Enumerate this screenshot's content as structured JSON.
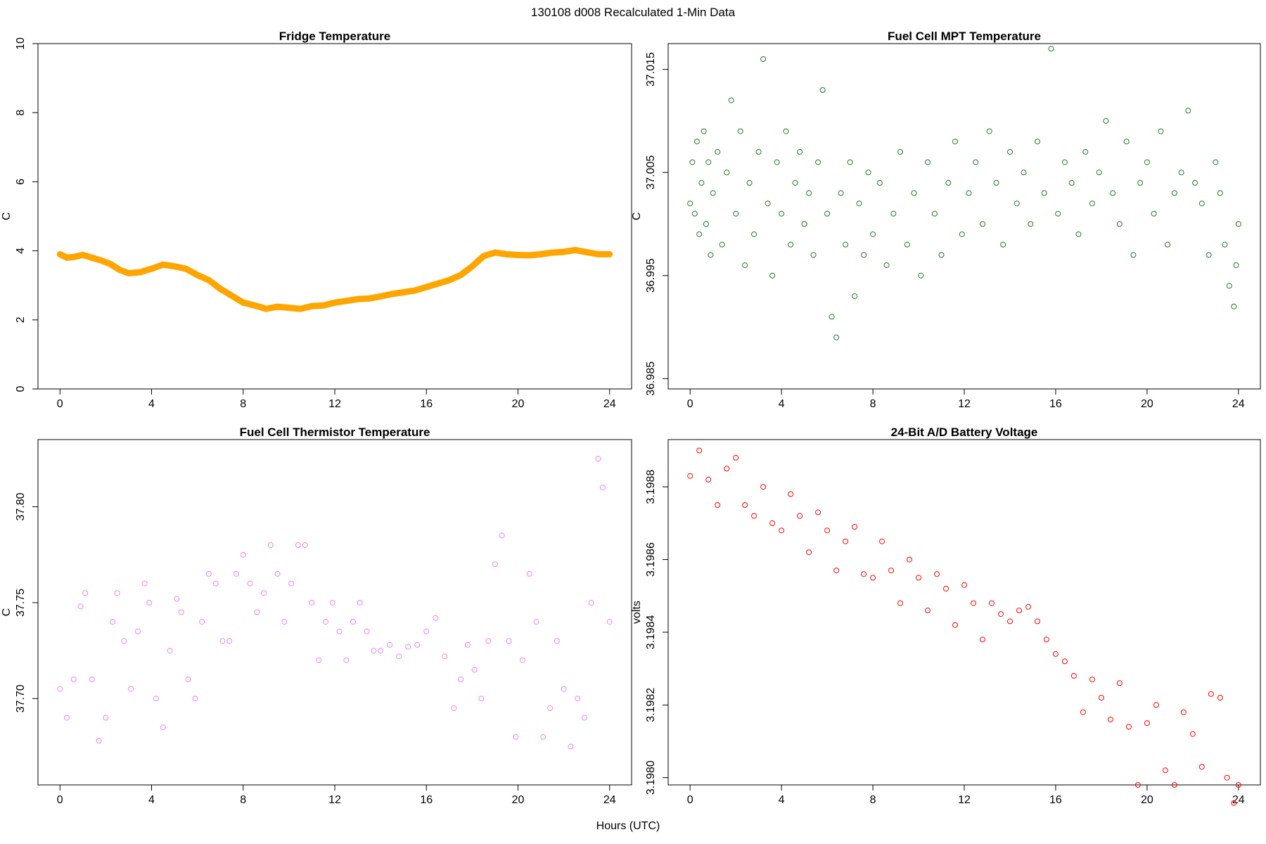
{
  "figure_title": "130108   d008   Recalculated 1-Min Data",
  "shared_xlabel": "Hours (UTC)",
  "chart_data": [
    {
      "type": "line",
      "title": "Fridge Temperature",
      "xlabel": "",
      "ylabel": "C",
      "xlim": [
        0,
        24
      ],
      "ylim": [
        0,
        10
      ],
      "xticks": [
        0,
        4,
        8,
        12,
        16,
        20,
        24
      ],
      "yticks": [
        0,
        2,
        4,
        6,
        8,
        10
      ],
      "color": "#FFA500",
      "series": [
        {
          "name": "Fridge Temperature",
          "x": [
            0.0,
            0.3,
            0.6,
            1.0,
            1.4,
            1.8,
            2.2,
            2.6,
            3.0,
            3.5,
            4.0,
            4.5,
            5.0,
            5.5,
            6.0,
            6.5,
            7.0,
            7.5,
            8.0,
            8.5,
            9.0,
            9.5,
            10.0,
            10.5,
            11.0,
            11.5,
            12.0,
            12.5,
            13.0,
            13.5,
            14.0,
            14.5,
            15.0,
            15.5,
            16.0,
            16.5,
            17.0,
            17.5,
            18.0,
            18.5,
            19.0,
            19.5,
            20.0,
            20.5,
            21.0,
            21.5,
            22.0,
            22.5,
            23.0,
            23.5,
            24.0
          ],
          "y": [
            3.9,
            3.8,
            3.82,
            3.88,
            3.8,
            3.72,
            3.62,
            3.45,
            3.35,
            3.38,
            3.48,
            3.6,
            3.55,
            3.48,
            3.3,
            3.15,
            2.9,
            2.7,
            2.5,
            2.42,
            2.32,
            2.38,
            2.35,
            2.32,
            2.4,
            2.42,
            2.5,
            2.55,
            2.6,
            2.62,
            2.68,
            2.75,
            2.8,
            2.85,
            2.95,
            3.05,
            3.15,
            3.3,
            3.55,
            3.85,
            3.95,
            3.9,
            3.88,
            3.87,
            3.9,
            3.95,
            3.97,
            4.02,
            3.96,
            3.9,
            3.9
          ]
        }
      ]
    },
    {
      "type": "scatter",
      "title": "Fuel Cell MPT Temperature",
      "xlabel": "",
      "ylabel": "C",
      "xlim": [
        0,
        24
      ],
      "ylim": [
        36.984,
        37.0175
      ],
      "xticks": [
        0,
        4,
        8,
        12,
        16,
        20,
        24
      ],
      "yticks": [
        36.985,
        36.995,
        37.005,
        37.015
      ],
      "yticklabels": [
        "36.985",
        "36.995",
        "37.005",
        "37.015"
      ],
      "color": "#1E7B1E",
      "series": [
        {
          "name": "Fuel Cell MPT Temperature",
          "x": [
            0.0,
            0.1,
            0.2,
            0.3,
            0.4,
            0.5,
            0.6,
            0.7,
            0.8,
            0.9,
            1.0,
            1.2,
            1.4,
            1.6,
            1.8,
            2.0,
            2.2,
            2.4,
            2.6,
            2.8,
            3.0,
            3.2,
            3.4,
            3.6,
            3.8,
            4.0,
            4.2,
            4.4,
            4.6,
            4.8,
            5.0,
            5.2,
            5.4,
            5.6,
            5.8,
            6.0,
            6.2,
            6.4,
            6.6,
            6.8,
            7.0,
            7.2,
            7.4,
            7.6,
            7.8,
            8.0,
            8.3,
            8.6,
            8.9,
            9.2,
            9.5,
            9.8,
            10.1,
            10.4,
            10.7,
            11.0,
            11.3,
            11.6,
            11.9,
            12.2,
            12.5,
            12.8,
            13.1,
            13.4,
            13.7,
            14.0,
            14.3,
            14.6,
            14.9,
            15.2,
            15.5,
            15.8,
            16.1,
            16.4,
            16.7,
            17.0,
            17.3,
            17.6,
            17.9,
            18.2,
            18.5,
            18.8,
            19.1,
            19.4,
            19.7,
            20.0,
            20.3,
            20.6,
            20.9,
            21.2,
            21.5,
            21.8,
            22.1,
            22.4,
            22.7,
            23.0,
            23.2,
            23.4,
            23.6,
            23.8,
            23.9,
            24.0
          ],
          "y": [
            37.002,
            37.006,
            37.001,
            37.008,
            36.999,
            37.004,
            37.009,
            37.0,
            37.006,
            36.997,
            37.003,
            37.007,
            36.998,
            37.005,
            37.012,
            37.001,
            37.009,
            36.996,
            37.004,
            36.999,
            37.007,
            37.016,
            37.002,
            36.995,
            37.006,
            37.001,
            37.009,
            36.998,
            37.004,
            37.007,
            37.0,
            37.003,
            36.997,
            37.006,
            37.013,
            37.001,
            36.991,
            36.989,
            37.003,
            36.998,
            37.006,
            36.993,
            37.002,
            36.997,
            37.005,
            36.999,
            37.004,
            36.996,
            37.001,
            37.007,
            36.998,
            37.003,
            36.995,
            37.006,
            37.001,
            36.997,
            37.004,
            37.008,
            36.999,
            37.003,
            37.006,
            37.0,
            37.009,
            37.004,
            36.998,
            37.007,
            37.002,
            37.005,
            37.0,
            37.008,
            37.003,
            37.017,
            37.001,
            37.006,
            37.004,
            36.999,
            37.007,
            37.002,
            37.005,
            37.01,
            37.003,
            37.0,
            37.008,
            36.997,
            37.004,
            37.006,
            37.001,
            37.009,
            36.998,
            37.003,
            37.005,
            37.011,
            37.004,
            37.002,
            36.997,
            37.006,
            37.003,
            36.998,
            36.994,
            36.992,
            36.996,
            37.0
          ]
        }
      ]
    },
    {
      "type": "scatter",
      "title": "Fuel Cell Thermistor Temperature",
      "xlabel": "",
      "ylabel": "C",
      "xlim": [
        0,
        24
      ],
      "ylim": [
        37.655,
        37.835
      ],
      "xticks": [
        0,
        4,
        8,
        12,
        16,
        20,
        24
      ],
      "yticks": [
        37.7,
        37.75,
        37.8
      ],
      "yticklabels": [
        "37.70",
        "37.75",
        "37.80"
      ],
      "color": "#EE82EE",
      "series": [
        {
          "name": "Fuel Cell Thermistor Temperature",
          "x": [
            0.0,
            0.3,
            0.6,
            0.9,
            1.1,
            1.4,
            1.7,
            2.0,
            2.3,
            2.5,
            2.8,
            3.1,
            3.4,
            3.7,
            3.9,
            4.2,
            4.5,
            4.8,
            5.1,
            5.3,
            5.6,
            5.9,
            6.2,
            6.5,
            6.8,
            7.1,
            7.4,
            7.7,
            8.0,
            8.3,
            8.6,
            8.9,
            9.2,
            9.5,
            9.8,
            10.1,
            10.4,
            10.7,
            11.0,
            11.3,
            11.6,
            11.9,
            12.2,
            12.5,
            12.8,
            13.1,
            13.4,
            13.7,
            14.0,
            14.4,
            14.8,
            15.2,
            15.6,
            16.0,
            16.4,
            16.8,
            17.2,
            17.5,
            17.8,
            18.1,
            18.4,
            18.7,
            19.0,
            19.3,
            19.6,
            19.9,
            20.2,
            20.5,
            20.8,
            21.1,
            21.4,
            21.7,
            22.0,
            22.3,
            22.6,
            22.9,
            23.2,
            23.5,
            23.7,
            24.0
          ],
          "y": [
            37.705,
            37.69,
            37.71,
            37.748,
            37.755,
            37.71,
            37.678,
            37.69,
            37.74,
            37.755,
            37.73,
            37.705,
            37.735,
            37.76,
            37.75,
            37.7,
            37.685,
            37.725,
            37.752,
            37.745,
            37.71,
            37.7,
            37.74,
            37.765,
            37.76,
            37.73,
            37.73,
            37.765,
            37.775,
            37.76,
            37.745,
            37.755,
            37.78,
            37.765,
            37.74,
            37.76,
            37.78,
            37.78,
            37.75,
            37.72,
            37.74,
            37.75,
            37.735,
            37.72,
            37.74,
            37.75,
            37.735,
            37.725,
            37.725,
            37.728,
            37.722,
            37.727,
            37.728,
            37.735,
            37.742,
            37.722,
            37.695,
            37.71,
            37.728,
            37.715,
            37.7,
            37.73,
            37.77,
            37.785,
            37.73,
            37.68,
            37.72,
            37.765,
            37.74,
            37.68,
            37.695,
            37.73,
            37.705,
            37.675,
            37.7,
            37.69,
            37.75,
            37.825,
            37.81,
            37.74
          ]
        }
      ]
    },
    {
      "type": "scatter",
      "title": "24-Bit A/D Battery Voltage",
      "xlabel": "",
      "ylabel": "volts",
      "xlim": [
        0,
        24
      ],
      "ylim": [
        3.19798,
        3.19893
      ],
      "xticks": [
        0,
        4,
        8,
        12,
        16,
        20,
        24
      ],
      "yticks": [
        3.198,
        3.1982,
        3.1984,
        3.1986,
        3.1988
      ],
      "yticklabels": [
        "3.1980",
        "3.1982",
        "3.1984",
        "3.1986",
        "3.1988"
      ],
      "color": "#FF0000",
      "series": [
        {
          "name": "24-Bit A/D Battery Voltage",
          "x": [
            0.0,
            0.4,
            0.8,
            1.2,
            1.6,
            2.0,
            2.4,
            2.8,
            3.2,
            3.6,
            4.0,
            4.4,
            4.8,
            5.2,
            5.6,
            6.0,
            6.4,
            6.8,
            7.2,
            7.6,
            8.0,
            8.4,
            8.8,
            9.2,
            9.6,
            10.0,
            10.4,
            10.8,
            11.2,
            11.6,
            12.0,
            12.4,
            12.8,
            13.2,
            13.6,
            14.0,
            14.4,
            14.8,
            15.2,
            15.6,
            16.0,
            16.4,
            16.8,
            17.2,
            17.6,
            18.0,
            18.4,
            18.8,
            19.2,
            19.6,
            20.0,
            20.4,
            20.8,
            21.2,
            21.6,
            22.0,
            22.4,
            22.8,
            23.2,
            23.5,
            23.8,
            24.0
          ],
          "y": [
            3.19883,
            3.1989,
            3.19882,
            3.19875,
            3.19885,
            3.19888,
            3.19875,
            3.19872,
            3.1988,
            3.1987,
            3.19868,
            3.19878,
            3.19872,
            3.19862,
            3.19873,
            3.19868,
            3.19857,
            3.19865,
            3.19869,
            3.19856,
            3.19855,
            3.19865,
            3.19857,
            3.19848,
            3.1986,
            3.19855,
            3.19846,
            3.19856,
            3.19852,
            3.19842,
            3.19853,
            3.19848,
            3.19838,
            3.19848,
            3.19845,
            3.19843,
            3.19846,
            3.19847,
            3.19843,
            3.19838,
            3.19834,
            3.19832,
            3.19828,
            3.19818,
            3.19827,
            3.19822,
            3.19816,
            3.19826,
            3.19814,
            3.19798,
            3.19815,
            3.1982,
            3.19802,
            3.19798,
            3.19818,
            3.19812,
            3.19803,
            3.19823,
            3.19822,
            3.198,
            3.19793,
            3.19798
          ]
        }
      ]
    }
  ]
}
